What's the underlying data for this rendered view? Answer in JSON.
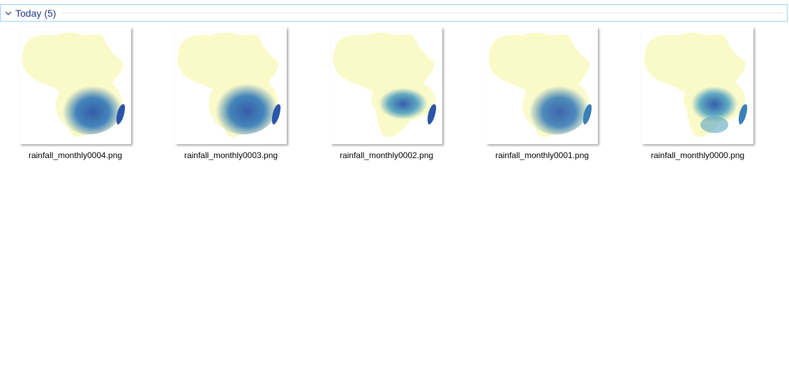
{
  "group": {
    "title": "Today",
    "count": "(5)",
    "chevron_icon": "chevron-down-icon"
  },
  "colors": {
    "header_border": "#99d1ff",
    "header_text": "#1e3287",
    "map_dry": "#fafac8",
    "map_mid": "#6fb8c4",
    "map_wet": "#2a55a8"
  },
  "files": [
    {
      "name": "rainfall_monthly0004.png"
    },
    {
      "name": "rainfall_monthly0003.png"
    },
    {
      "name": "rainfall_monthly0002.png"
    },
    {
      "name": "rainfall_monthly0001.png"
    },
    {
      "name": "rainfall_monthly0000.png"
    }
  ]
}
